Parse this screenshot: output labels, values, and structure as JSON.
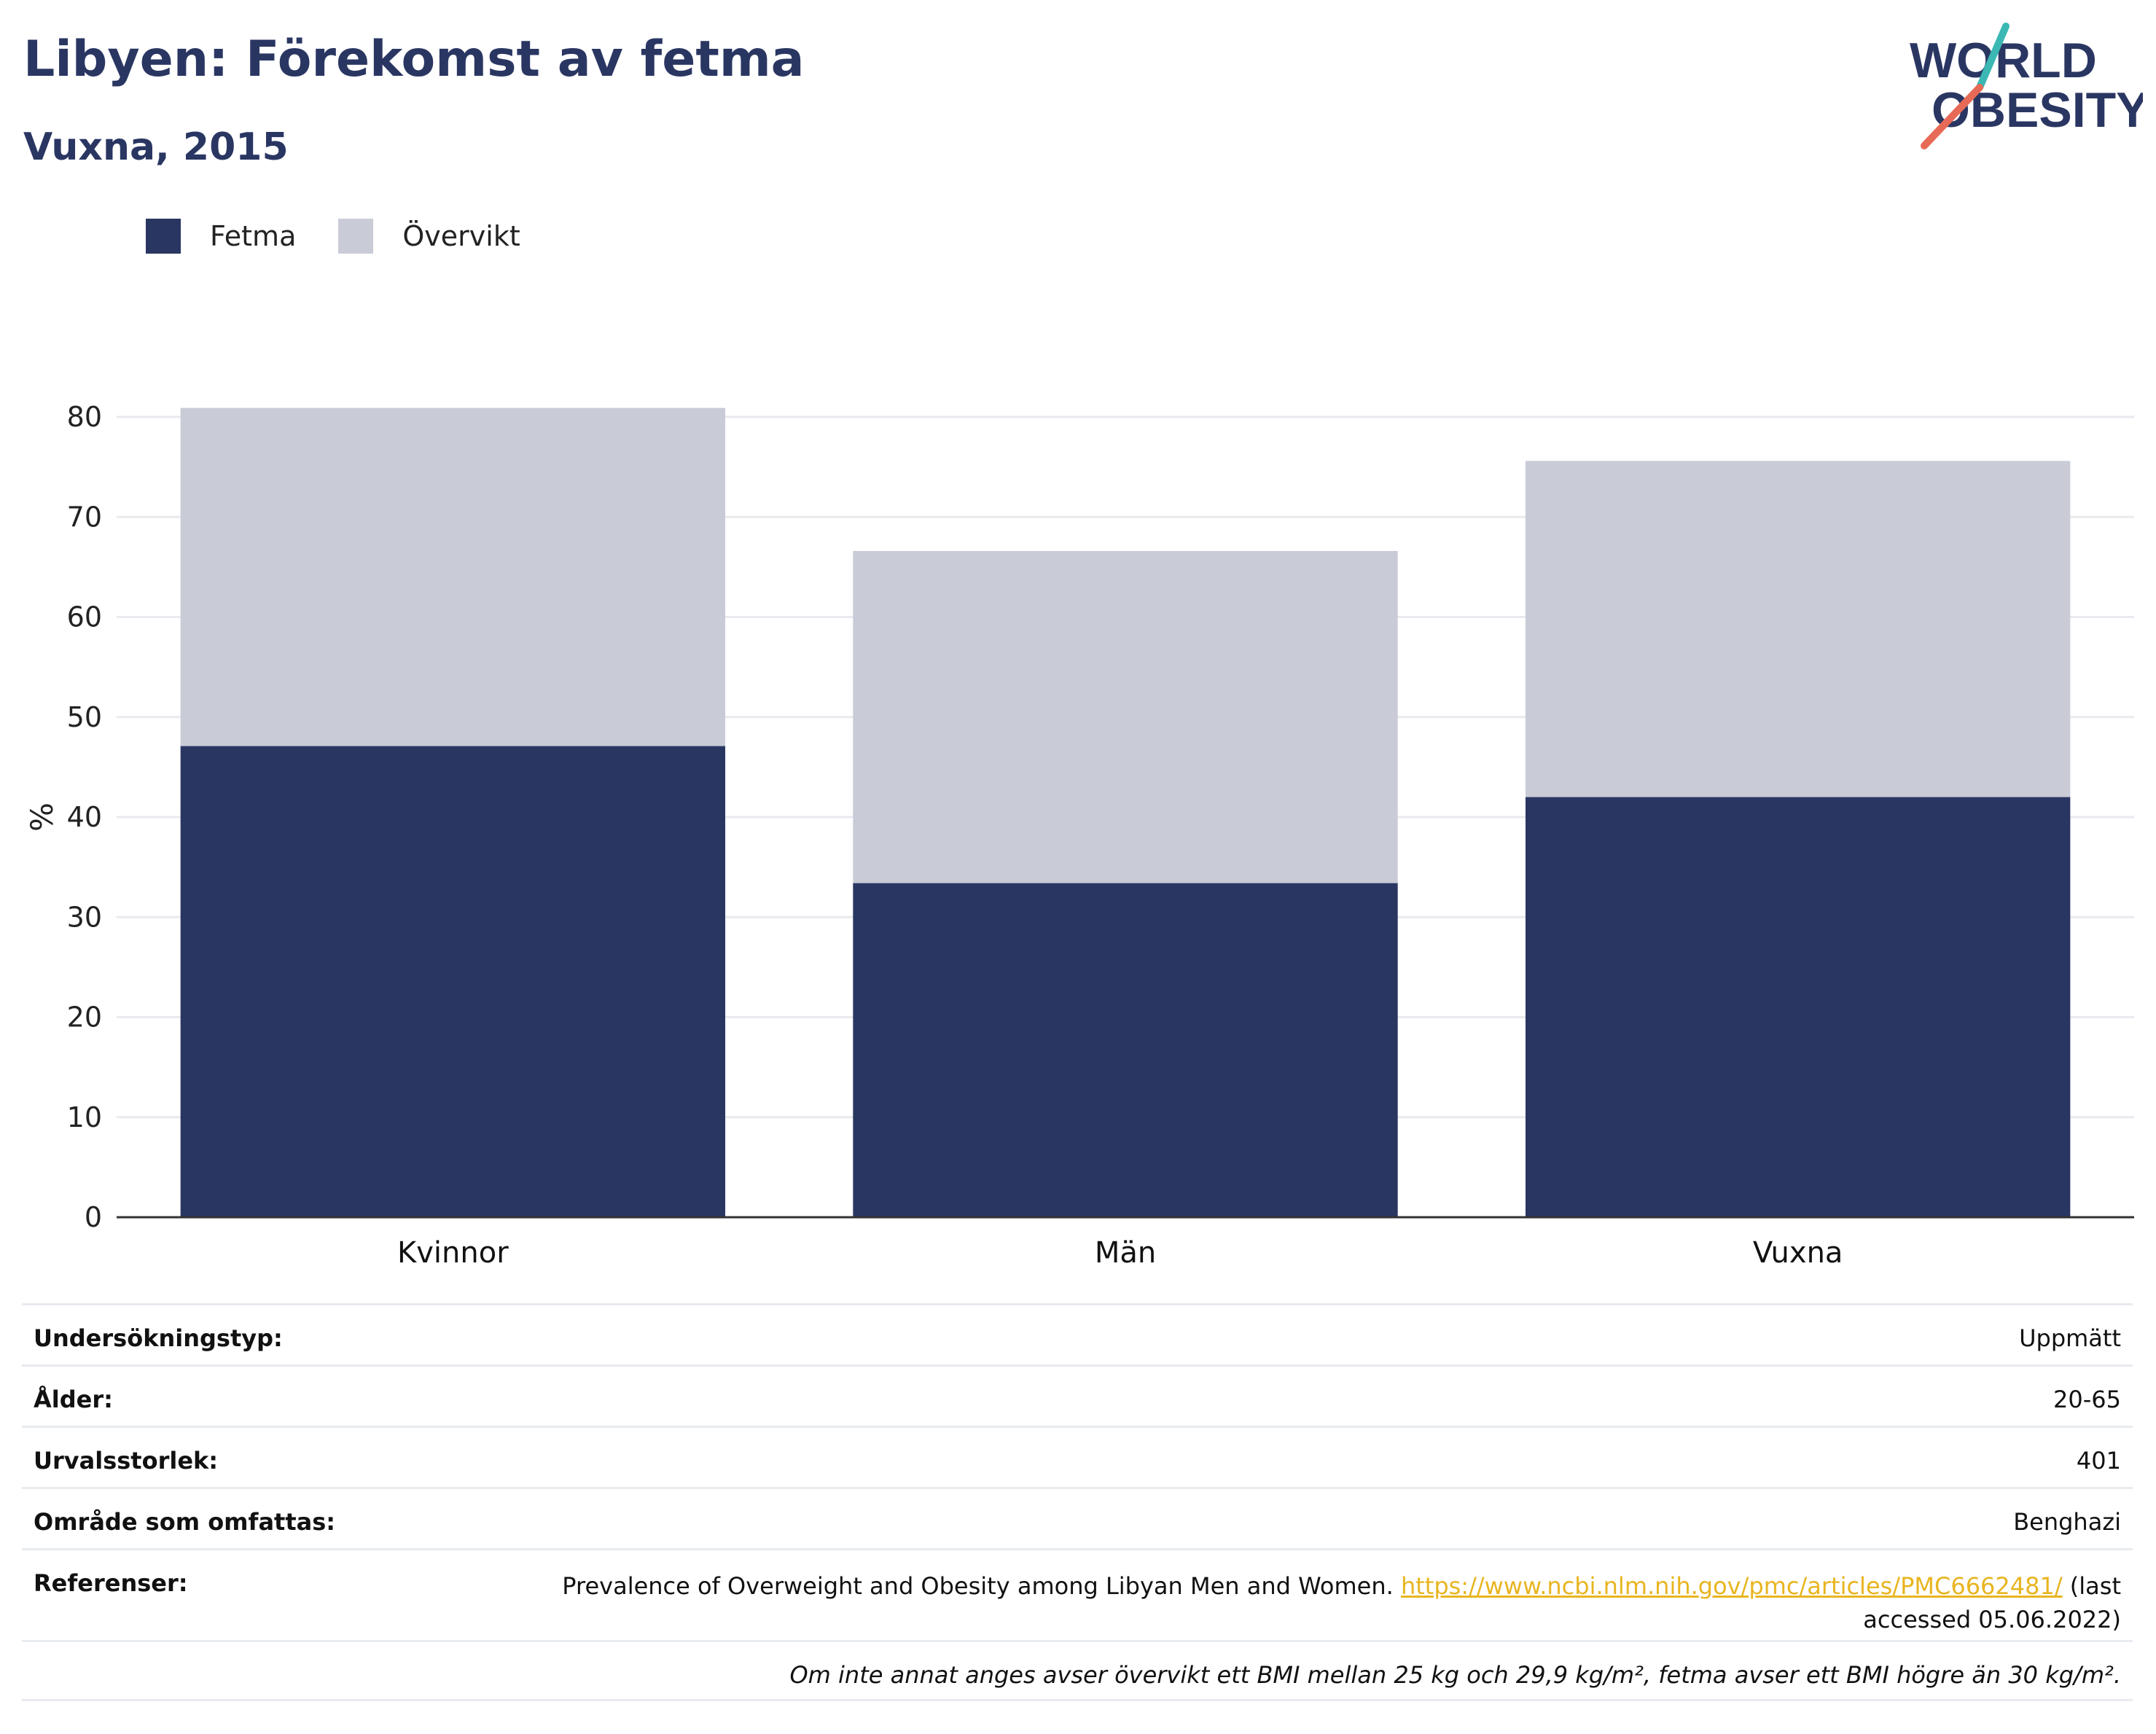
{
  "header": {
    "title": "Libyen: Förekomst av fetma",
    "subtitle": "Vuxna, 2015"
  },
  "logo": {
    "line1": "WORLD",
    "line2": "OBESITY",
    "colors": {
      "text": "#2a3662",
      "teal": "#3bb8b4",
      "coral": "#e66a56"
    }
  },
  "legend": [
    {
      "label": "Fetma",
      "color": "#2a3662"
    },
    {
      "label": "Övervikt",
      "color": "#c9ccd7"
    }
  ],
  "chart_data": {
    "type": "bar",
    "stacked": true,
    "categories": [
      "Kvinnor",
      "Män",
      "Vuxna"
    ],
    "series": [
      {
        "name": "Fetma",
        "color": "#2a3662",
        "values": [
          47.1,
          33.4,
          42.0
        ]
      },
      {
        "name": "Övervikt",
        "color": "#c9ccd7",
        "values": [
          33.8,
          33.2,
          33.6
        ]
      }
    ],
    "ylabel": "%",
    "ylim": [
      0,
      80
    ],
    "yticks": [
      0,
      10,
      20,
      30,
      40,
      50,
      60,
      70,
      80
    ],
    "grid": true,
    "legend_position": "top-left"
  },
  "meta": {
    "survey_type": {
      "label": "Undersökningstyp:",
      "value": "Uppmätt"
    },
    "age": {
      "label": "Ålder:",
      "value": "20-65"
    },
    "sample_size": {
      "label": "Urvalsstorlek:",
      "value": "401"
    },
    "area": {
      "label": "Område som omfattas:",
      "value": "Benghazi"
    },
    "references": {
      "label": "Referenser:",
      "text": "Prevalence of Overweight and Obesity among Libyan Men and Women. ",
      "link": "https://www.ncbi.nlm.nih.gov/pmc/articles/PMC6662481/",
      "accessed": " (last accessed 05.06.2022)"
    },
    "note": "Om inte annat anges avser övervikt ett BMI mellan 25 kg och 29,9 kg/m², fetma avser ett BMI högre än 30 kg/m²."
  }
}
